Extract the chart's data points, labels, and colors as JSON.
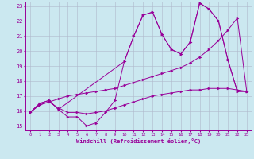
{
  "xlabel": "Windchill (Refroidissement éolien,°C)",
  "bg_color": "#cbe8f0",
  "line_color": "#990099",
  "grid_color": "#b0b8cc",
  "xlim": [
    -0.5,
    23.5
  ],
  "ylim": [
    14.7,
    23.3
  ],
  "xticks": [
    0,
    1,
    2,
    3,
    4,
    5,
    6,
    7,
    8,
    9,
    10,
    11,
    12,
    13,
    14,
    15,
    16,
    17,
    18,
    19,
    20,
    21,
    22,
    23
  ],
  "yticks": [
    15,
    16,
    17,
    18,
    19,
    20,
    21,
    22,
    23
  ],
  "line1_x": [
    0,
    1,
    2,
    3,
    4,
    5,
    6,
    7,
    8,
    9,
    10,
    11,
    12,
    13,
    14,
    15,
    16,
    17,
    18,
    19,
    20,
    21,
    22,
    23
  ],
  "line1_y": [
    15.9,
    16.5,
    16.7,
    16.1,
    15.6,
    15.6,
    15.0,
    15.2,
    15.9,
    16.7,
    19.3,
    21.0,
    22.4,
    22.6,
    21.1,
    20.1,
    19.8,
    20.6,
    23.2,
    22.8,
    22.0,
    19.4,
    17.3,
    17.3
  ],
  "line2_x": [
    0,
    1,
    2,
    3,
    4,
    5,
    6,
    7,
    8,
    9,
    10,
    11,
    12,
    13,
    14,
    15,
    16,
    17,
    18,
    19,
    20,
    21,
    22,
    23
  ],
  "line2_y": [
    15.9,
    16.4,
    16.6,
    16.2,
    15.9,
    15.9,
    15.8,
    15.9,
    16.0,
    16.2,
    16.4,
    16.6,
    16.8,
    17.0,
    17.1,
    17.2,
    17.3,
    17.4,
    17.4,
    17.5,
    17.5,
    17.5,
    17.4,
    17.3
  ],
  "line3_x": [
    0,
    1,
    2,
    3,
    4,
    5,
    6,
    7,
    8,
    9,
    10,
    11,
    12,
    13,
    14,
    15,
    16,
    17,
    18,
    19,
    20,
    21,
    22,
    23
  ],
  "line3_y": [
    15.9,
    16.4,
    16.6,
    16.8,
    17.0,
    17.1,
    17.2,
    17.3,
    17.4,
    17.5,
    17.7,
    17.9,
    18.1,
    18.3,
    18.5,
    18.7,
    18.9,
    19.2,
    19.6,
    20.1,
    20.7,
    21.4,
    22.2,
    17.3
  ],
  "line4_x": [
    0,
    1,
    2,
    3,
    10,
    11,
    12,
    13,
    14,
    15,
    16,
    17,
    18,
    19,
    20,
    21,
    22,
    23
  ],
  "line4_y": [
    15.9,
    16.5,
    16.7,
    16.1,
    19.3,
    21.0,
    22.4,
    22.6,
    21.1,
    20.1,
    19.8,
    20.6,
    23.2,
    22.8,
    22.0,
    19.4,
    17.3,
    17.3
  ]
}
